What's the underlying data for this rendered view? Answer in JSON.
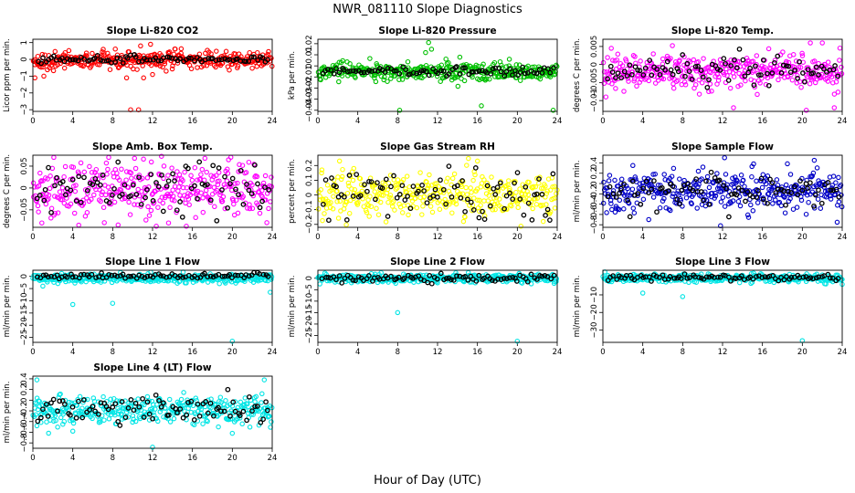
{
  "figure": {
    "title": "NWR_081110  Slope Diagnostics",
    "xlabel": "Hour of Day (UTC)",
    "black_point_color": "#000000"
  },
  "chart_data": [
    {
      "type": "scatter",
      "title": "Slope Li-820 CO2",
      "ylabel": "Licor ppm per min.",
      "color": "#ff0000",
      "xlim": [
        0,
        24
      ],
      "xticks": [
        0,
        4,
        8,
        12,
        16,
        20,
        24
      ],
      "ylim": [
        -3.1,
        1.2
      ],
      "yticks": [
        -3,
        -2,
        -1,
        0,
        1
      ],
      "center": -0.05,
      "spread": 0.25,
      "outliers": [
        [
          9.8,
          -3.0
        ],
        [
          10.6,
          -3.0
        ],
        [
          1.1,
          -1.0
        ],
        [
          9.4,
          -1.1
        ],
        [
          11.1,
          -1.1
        ],
        [
          11.8,
          0.9
        ],
        [
          10.8,
          0.8
        ],
        [
          12.0,
          -0.9
        ],
        [
          0.2,
          -1.1
        ]
      ],
      "black_center": 0.0,
      "black_spread": 0.12
    },
    {
      "type": "scatter",
      "title": "Slope Li-820 Pressure",
      "ylabel": "kPa per min.",
      "color": "#00c000",
      "xlim": [
        0,
        24
      ],
      "xticks": [
        0,
        4,
        8,
        12,
        16,
        20,
        24
      ],
      "ylim": [
        -0.041,
        0.024
      ],
      "yticks": [
        -0.04,
        -0.03,
        -0.02,
        -0.01,
        0.0,
        0.01,
        0.02
      ],
      "center": -0.005,
      "spread": 0.004,
      "outliers": [
        [
          8.2,
          -0.04
        ],
        [
          11.1,
          0.021
        ],
        [
          11.4,
          0.015
        ],
        [
          10.8,
          0.012
        ],
        [
          16.4,
          -0.036
        ],
        [
          23.6,
          -0.04
        ],
        [
          19.2,
          0.006
        ],
        [
          0.2,
          -0.012
        ]
      ],
      "black_center": -0.005,
      "black_spread": 0.002
    },
    {
      "type": "scatter",
      "title": "Slope Li-820 Temp.",
      "ylabel": "degrees C per min.",
      "color": "#ff00ff",
      "xlim": [
        0,
        24
      ],
      "xticks": [
        0,
        4,
        8,
        12,
        16,
        20,
        24
      ],
      "ylim": [
        -0.013,
        0.007
      ],
      "yticks": [
        -0.01,
        -0.005,
        0.0,
        0.005
      ],
      "center": -0.002,
      "spread": 0.0025,
      "outliers": [
        [
          0.3,
          -0.009
        ],
        [
          13.1,
          -0.012
        ],
        [
          20.4,
          -0.013
        ],
        [
          23.2,
          -0.012
        ],
        [
          20.8,
          0.006
        ],
        [
          22.0,
          0.006
        ]
      ],
      "black_center": -0.002,
      "black_spread": 0.0022
    },
    {
      "type": "scatter",
      "title": "Slope Amb. Box Temp.",
      "ylabel": "degrees C per min.",
      "color": "#ff00ff",
      "xlim": [
        0,
        24
      ],
      "xticks": [
        0,
        4,
        8,
        12,
        16,
        20,
        24
      ],
      "ylim": [
        -0.09,
        0.075
      ],
      "yticks": [
        -0.05,
        0.0,
        0.05
      ],
      "center": 0.0,
      "spread": 0.03,
      "outliers": [
        [
          4.6,
          -0.085
        ],
        [
          2.1,
          0.07
        ],
        [
          7.6,
          0.07
        ],
        [
          10.2,
          0.068
        ],
        [
          0.9,
          -0.08
        ],
        [
          13.6,
          -0.08
        ]
      ],
      "black_center": 0.0,
      "black_spread": 0.03
    },
    {
      "type": "scatter",
      "title": "Slope Gas Stream RH",
      "ylabel": "percent per min.",
      "color": "#ffff00",
      "xlim": [
        0,
        24
      ],
      "xticks": [
        0,
        4,
        8,
        12,
        16,
        20,
        24
      ],
      "ylim": [
        -0.22,
        0.27
      ],
      "yticks": [
        -0.2,
        -0.1,
        0.0,
        0.1,
        0.2
      ],
      "center": 0.0,
      "spread": 0.08,
      "outliers": [
        [
          16.0,
          0.23
        ],
        [
          3.6,
          0.18
        ],
        [
          22.6,
          -0.18
        ],
        [
          14.6,
          -0.18
        ],
        [
          0.4,
          0.17
        ]
      ],
      "black_center": 0.0,
      "black_spread": 0.09
    },
    {
      "type": "scatter",
      "title": "Slope Sample Flow",
      "ylabel": "ml/min per min.",
      "color": "#0000c8",
      "xlim": [
        0,
        24
      ],
      "xticks": [
        0,
        4,
        8,
        12,
        16,
        20,
        24
      ],
      "ylim": [
        -0.85,
        0.55
      ],
      "yticks": [
        -0.8,
        -0.6,
        -0.4,
        -0.2,
        0.0,
        0.2,
        0.4
      ],
      "center": -0.15,
      "spread": 0.18,
      "outliers": [
        [
          11.8,
          -0.82
        ],
        [
          23.5,
          -0.75
        ],
        [
          21.2,
          0.45
        ],
        [
          12.2,
          0.5
        ],
        [
          3.0,
          0.35
        ],
        [
          4.6,
          -0.7
        ]
      ],
      "black_center": -0.15,
      "black_spread": 0.17
    },
    {
      "type": "scatter",
      "title": "Slope Line 1 Flow",
      "ylabel": "ml/min per min.",
      "color": "#00e5e5",
      "xlim": [
        0,
        24
      ],
      "xticks": [
        0,
        4,
        8,
        12,
        16,
        20,
        24
      ],
      "ylim": [
        -27,
        2.5
      ],
      "yticks": [
        -25,
        -20,
        -15,
        -10,
        -5,
        0
      ],
      "center": -0.8,
      "spread": 0.9,
      "outliers": [
        [
          20.0,
          -26.5
        ],
        [
          4.0,
          -11.5
        ],
        [
          8.0,
          -11.0
        ],
        [
          23.8,
          -6.5
        ],
        [
          1.0,
          -4.0
        ]
      ],
      "black_center": 0.0,
      "black_spread": 0.6
    },
    {
      "type": "scatter",
      "title": "Slope Line 2 Flow",
      "ylabel": "ml/min per min.",
      "color": "#00e5e5",
      "xlim": [
        0,
        24
      ],
      "xticks": [
        0,
        4,
        8,
        12,
        16,
        20,
        24
      ],
      "ylim": [
        -28,
        3.5
      ],
      "yticks": [
        -25,
        -20,
        -15,
        -10,
        -5,
        0
      ],
      "center": 0.0,
      "spread": 0.9,
      "outliers": [
        [
          20.0,
          -27.5
        ],
        [
          8.0,
          -15.0
        ],
        [
          12.0,
          -2.0
        ],
        [
          0.2,
          -2.5
        ]
      ],
      "black_center": 0.0,
      "black_spread": 0.8
    },
    {
      "type": "scatter",
      "title": "Slope Line 3 Flow",
      "ylabel": "ml/min per min.",
      "color": "#00e5e5",
      "xlim": [
        0,
        24
      ],
      "xticks": [
        0,
        4,
        8,
        12,
        16,
        20,
        24
      ],
      "ylim": [
        -37,
        4
      ],
      "yticks": [
        -30,
        -20,
        -10
      ],
      "center": -0.5,
      "spread": 1.1,
      "outliers": [
        [
          20.0,
          -36.0
        ],
        [
          4.0,
          -9.0
        ],
        [
          8.0,
          -11.0
        ],
        [
          0.2,
          3.0
        ],
        [
          24.0,
          -4.0
        ]
      ],
      "black_center": 0.0,
      "black_spread": 0.9
    },
    {
      "type": "scatter",
      "title": "Slope Line 4 (LT) Flow",
      "ylabel": "ml/min per min.",
      "color": "#00e5e5",
      "xlim": [
        0,
        24
      ],
      "xticks": [
        0,
        4,
        8,
        12,
        16,
        20,
        24
      ],
      "ylim": [
        -0.9,
        0.45
      ],
      "yticks": [
        -0.8,
        -0.6,
        -0.4,
        -0.2,
        0.0,
        0.2,
        0.4
      ],
      "center": -0.18,
      "spread": 0.13,
      "outliers": [
        [
          12.0,
          -0.88
        ],
        [
          4.0,
          -0.58
        ],
        [
          20.0,
          -0.62
        ],
        [
          0.4,
          -0.48
        ],
        [
          3.0,
          -0.45
        ],
        [
          18.6,
          -0.5
        ],
        [
          23.2,
          0.38
        ],
        [
          0.4,
          0.38
        ]
      ],
      "black_center": -0.18,
      "black_spread": 0.13
    }
  ]
}
